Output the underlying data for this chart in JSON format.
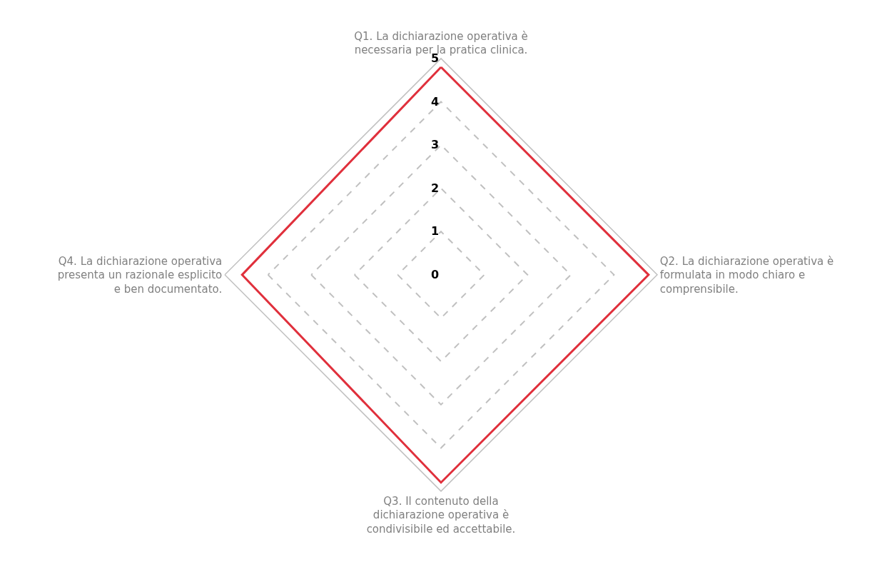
{
  "chart_data": {
    "type": "radar",
    "categories": [
      "Q1. La dichiarazione operativa è\nnecessaria per la pratica clinica.",
      "Q2. La dichiarazione operativa è\nformulata in modo chiaro e\ncomprensibile.",
      "Q3. Il contenuto della\ndichiarazione operativa è\ncondivisibile ed accettabile.",
      "Q4. La dichiarazione operativa\npresenta un razionale esplicito\ne ben documentato."
    ],
    "series": [
      {
        "color": "#e0303c",
        "values": [
          4.8,
          4.8,
          4.8,
          4.6
        ]
      }
    ],
    "ylim": [
      0,
      5
    ],
    "yticks": [
      0,
      1,
      2,
      3,
      4,
      5
    ],
    "grid": true,
    "marker": "none",
    "line_style": "solid"
  }
}
